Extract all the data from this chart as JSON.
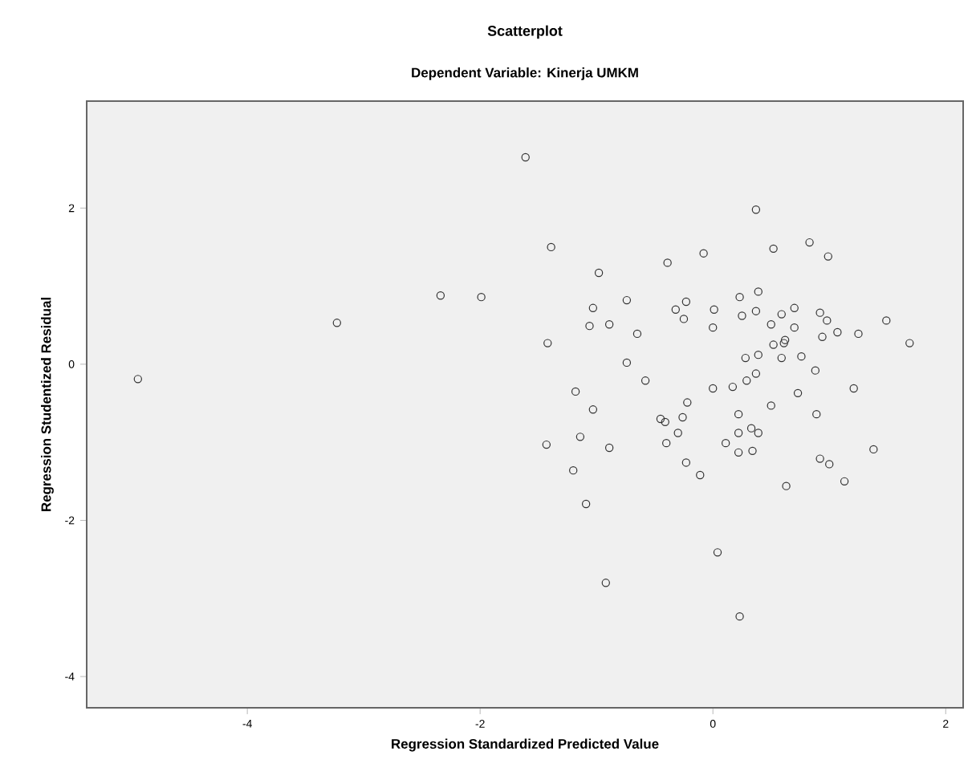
{
  "chart_data": {
    "type": "scatter",
    "title": "Scatterplot",
    "subtitle": "Dependent Variable: Kinerja UMKM",
    "xlabel": "Regression Standardized Predicted Value",
    "ylabel": "Regression Studentized Residual",
    "xlim": [
      -5.38,
      2.15
    ],
    "ylim": [
      -4.4,
      3.37
    ],
    "xticks": [
      -4,
      -2,
      0,
      2
    ],
    "yticks": [
      -4,
      -2,
      0,
      2
    ],
    "grid": false,
    "marker": "circle",
    "series": [
      {
        "color": "#333333",
        "x": [
          -1.61,
          -1.39,
          0.37,
          0.52,
          0.83,
          0.99,
          -0.08,
          -0.39,
          -0.98,
          -0.74,
          -1.03,
          -1.06,
          -0.89,
          -0.65,
          -1.42,
          -0.23,
          -0.32,
          -0.25,
          0.01,
          0.0,
          0.23,
          0.39,
          0.37,
          0.25,
          0.5,
          0.59,
          0.7,
          0.7,
          0.62,
          0.52,
          0.61,
          0.92,
          0.98,
          1.07,
          0.94,
          1.25,
          1.49,
          1.69,
          -2.34,
          -1.99,
          -3.23,
          -4.94,
          -0.74,
          0.28,
          0.39,
          0.76,
          0.59,
          0.88,
          0.37,
          0.29,
          0.17,
          0.0,
          -0.58,
          -1.18,
          -1.03,
          -0.45,
          -0.41,
          -0.26,
          -0.22,
          -0.3,
          -0.4,
          -0.23,
          -0.11,
          0.5,
          0.73,
          1.21,
          0.89,
          0.22,
          0.22,
          0.11,
          0.22,
          0.34,
          0.33,
          0.39,
          0.92,
          1.0,
          1.13,
          0.63,
          1.38,
          -1.43,
          -1.2,
          -1.09,
          -0.92,
          -1.14,
          -0.89,
          0.04,
          0.23
        ],
        "values": [
          2.65,
          1.5,
          1.98,
          1.48,
          1.56,
          1.38,
          1.42,
          1.3,
          1.17,
          0.82,
          0.72,
          0.49,
          0.51,
          0.39,
          0.27,
          0.8,
          0.7,
          0.58,
          0.7,
          0.47,
          0.86,
          0.93,
          0.68,
          0.62,
          0.51,
          0.64,
          0.72,
          0.47,
          0.31,
          0.25,
          0.27,
          0.66,
          0.56,
          0.41,
          0.35,
          0.39,
          0.56,
          0.27,
          0.88,
          0.86,
          0.53,
          -0.19,
          0.02,
          0.08,
          0.12,
          0.1,
          0.08,
          -0.08,
          -0.12,
          -0.21,
          -0.29,
          -0.31,
          -0.21,
          -0.35,
          -0.58,
          -0.7,
          -0.74,
          -0.68,
          -0.49,
          -0.88,
          -1.01,
          -1.26,
          -1.42,
          -0.53,
          -0.37,
          -0.31,
          -0.64,
          -0.64,
          -0.88,
          -1.01,
          -1.13,
          -1.11,
          -0.82,
          -0.88,
          -1.21,
          -1.28,
          -1.5,
          -1.56,
          -1.09,
          -1.03,
          -1.36,
          -1.79,
          -2.8,
          -0.93,
          -1.07,
          -2.41,
          -3.23
        ]
      }
    ]
  }
}
